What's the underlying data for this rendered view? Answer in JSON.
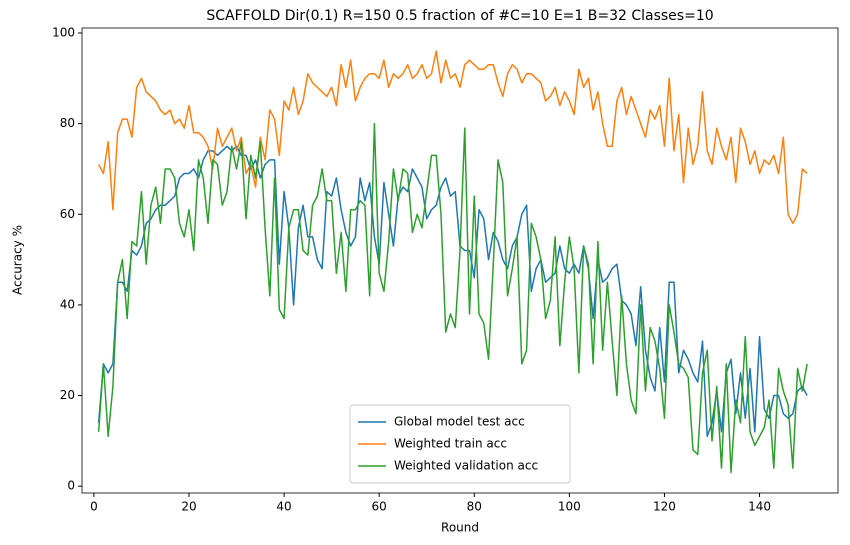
{
  "chart_data": {
    "type": "line",
    "title": "SCAFFOLD Dir(0.1) R=150 0.5 fraction of #C=10 E=1 B=32  Classes=10",
    "x_label": "Round",
    "y_label": "Accuracy %",
    "x": [
      1,
      2,
      3,
      4,
      5,
      6,
      7,
      8,
      9,
      10,
      11,
      12,
      13,
      14,
      15,
      16,
      17,
      18,
      19,
      20,
      21,
      22,
      23,
      24,
      25,
      26,
      27,
      28,
      29,
      30,
      31,
      32,
      33,
      34,
      35,
      36,
      37,
      38,
      39,
      40,
      41,
      42,
      43,
      44,
      45,
      46,
      47,
      48,
      49,
      50,
      51,
      52,
      53,
      54,
      55,
      56,
      57,
      58,
      59,
      60,
      61,
      62,
      63,
      64,
      65,
      66,
      67,
      68,
      69,
      70,
      71,
      72,
      73,
      74,
      75,
      76,
      77,
      78,
      79,
      80,
      81,
      82,
      83,
      84,
      85,
      86,
      87,
      88,
      89,
      90,
      91,
      92,
      93,
      94,
      95,
      96,
      97,
      98,
      99,
      100,
      101,
      102,
      103,
      104,
      105,
      106,
      107,
      108,
      109,
      110,
      111,
      112,
      113,
      114,
      115,
      116,
      117,
      118,
      119,
      120,
      121,
      122,
      123,
      124,
      125,
      126,
      127,
      128,
      129,
      130,
      131,
      132,
      133,
      134,
      135,
      136,
      137,
      138,
      139,
      140,
      141,
      142,
      143,
      144,
      145,
      146,
      147,
      148,
      149,
      150
    ],
    "series": [
      {
        "name": "Global model test acc",
        "color": "#1f77b4",
        "values": [
          14,
          27,
          25,
          27,
          45,
          45,
          43,
          52,
          51,
          53,
          58,
          59,
          61,
          62,
          62,
          63,
          64,
          68,
          69,
          69,
          70,
          68,
          72,
          74,
          74,
          73,
          74,
          75,
          74,
          75,
          73,
          73,
          70,
          72,
          68,
          71,
          72,
          72,
          49,
          65,
          57,
          40,
          57,
          62,
          55,
          55,
          50,
          48,
          65,
          64,
          68,
          61,
          56,
          53,
          55,
          68,
          63,
          67,
          55,
          49,
          67,
          60,
          53,
          64,
          66,
          65,
          70,
          68,
          66,
          59,
          61,
          62,
          66,
          68,
          64,
          65,
          53,
          52,
          52,
          46,
          61,
          59,
          50,
          56,
          54,
          50,
          48,
          53,
          55,
          60,
          62,
          43,
          48,
          50,
          45,
          46,
          47,
          53,
          48,
          47,
          49,
          47,
          53,
          48,
          37,
          50,
          45,
          46,
          48,
          49,
          41,
          40,
          38,
          31,
          44,
          30,
          24,
          21,
          35,
          23,
          45,
          45,
          25,
          30,
          28,
          25,
          23,
          32,
          11,
          14,
          21,
          12,
          25,
          28,
          16,
          25,
          15,
          26,
          12,
          33,
          17,
          15,
          20,
          20,
          16,
          15,
          16,
          21,
          22,
          20
        ]
      },
      {
        "name": "Weighted train acc",
        "color": "#ff7f0e",
        "values": [
          71,
          69,
          76,
          61,
          78,
          81,
          81,
          77,
          88,
          90,
          87,
          86,
          85,
          83,
          82,
          83,
          80,
          81,
          79,
          84,
          78,
          78,
          77,
          75,
          70,
          79,
          75,
          77,
          79,
          74,
          77,
          69,
          71,
          66,
          77,
          72,
          83,
          81,
          73,
          85,
          83,
          88,
          82,
          85,
          91,
          89,
          88,
          87,
          86,
          88,
          84,
          93,
          88,
          94,
          85,
          88,
          90,
          91,
          91,
          90,
          94,
          88,
          91,
          90,
          91,
          93,
          90,
          91,
          93,
          90,
          91,
          96,
          89,
          94,
          90,
          91,
          88,
          93,
          94,
          93,
          92,
          92,
          93,
          93,
          89,
          86,
          91,
          93,
          92,
          89,
          91,
          91,
          90,
          89,
          85,
          86,
          88,
          84,
          87,
          85,
          82,
          92,
          88,
          90,
          83,
          87,
          80,
          75,
          75,
          85,
          88,
          82,
          86,
          83,
          80,
          77,
          83,
          81,
          84,
          75,
          90,
          74,
          82,
          67,
          79,
          71,
          75,
          87,
          74,
          71,
          79,
          75,
          72,
          77,
          67,
          79,
          76,
          71,
          74,
          69,
          72,
          71,
          73,
          69,
          77,
          60,
          58,
          60,
          70,
          69
        ]
      },
      {
        "name": "Weighted validation acc",
        "color": "#2ca02c",
        "values": [
          12,
          27,
          11,
          22,
          45,
          50,
          37,
          54,
          53,
          65,
          49,
          62,
          66,
          58,
          70,
          70,
          68,
          58,
          55,
          61,
          52,
          72,
          68,
          58,
          72,
          71,
          62,
          65,
          75,
          70,
          76,
          59,
          73,
          68,
          76,
          57,
          42,
          68,
          39,
          37,
          57,
          61,
          61,
          52,
          51,
          62,
          64,
          70,
          63,
          63,
          47,
          56,
          43,
          61,
          61,
          63,
          62,
          42,
          80,
          47,
          43,
          54,
          70,
          63,
          70,
          69,
          56,
          60,
          57,
          65,
          73,
          73,
          60,
          34,
          38,
          35,
          52,
          79,
          38,
          64,
          38,
          36,
          28,
          49,
          72,
          67,
          42,
          48,
          55,
          27,
          30,
          58,
          55,
          50,
          37,
          41,
          55,
          31,
          45,
          55,
          48,
          25,
          53,
          49,
          27,
          54,
          30,
          45,
          32,
          20,
          42,
          27,
          19,
          16,
          40,
          21,
          35,
          32,
          26,
          15,
          40,
          34,
          27,
          26,
          24,
          8,
          7,
          25,
          30,
          10,
          22,
          4,
          27,
          3,
          19,
          14,
          33,
          12,
          9,
          11,
          13,
          19,
          4,
          26,
          21,
          18,
          4,
          26,
          21,
          27
        ]
      }
    ],
    "xlim": [
      -2.5,
      156.5
    ],
    "ylim": [
      -1.5,
      101.1
    ],
    "xticks": [
      0,
      20,
      40,
      60,
      80,
      100,
      120,
      140
    ],
    "yticks": [
      0,
      20,
      40,
      60,
      80,
      100
    ],
    "grid": false,
    "legend": "lower center"
  }
}
